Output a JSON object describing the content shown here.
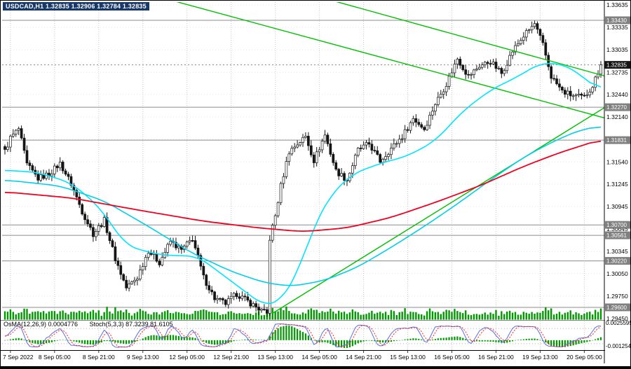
{
  "window": {
    "title": "USDCAD,H1 1.32835 1.32906 1.32784 1.32835"
  },
  "colors": {
    "background": "#FFFFFF",
    "border": "#000000",
    "grid": "#C8C8C8",
    "grid_h": "#E6E6E6",
    "candle_up": "#FFFFFF",
    "candle_down": "#151515",
    "wick": "#151515",
    "volume": "#009900",
    "level": "#8C8C8C",
    "trend": "#00C000",
    "tag_bg": "#808080",
    "tag_text": "#FFFFFF",
    "tag_current_bg": "#151515",
    "axis_text": "#000000",
    "osma": "#009900",
    "stoch_k": "#5B6EE1",
    "stoch_d": "#FF2020",
    "pane_level": "#B4B4B4",
    "separator": "#808080",
    "current_price_line": "#888888",
    "title_bg": "#17386B",
    "title_text": "#FFFFFF"
  },
  "chart_data": {
    "type": "candlestick",
    "symbol": "USDCAD",
    "timeframe": "H1",
    "ohlc_info": {
      "open": "1.32835",
      "high": "1.32906",
      "low": "1.32784",
      "close": "1.32835"
    },
    "current_price": "1.32835",
    "candles_n": 217,
    "close_anchors": [
      [
        0,
        1.3168
      ],
      [
        2,
        1.3186
      ],
      [
        5,
        1.3198
      ],
      [
        8,
        1.315
      ],
      [
        12,
        1.3132
      ],
      [
        16,
        1.3138
      ],
      [
        20,
        1.3152
      ],
      [
        24,
        1.3125
      ],
      [
        28,
        1.3088
      ],
      [
        32,
        1.3058
      ],
      [
        36,
        1.3076
      ],
      [
        40,
        1.3025
      ],
      [
        44,
        1.2986
      ],
      [
        48,
        1.3
      ],
      [
        52,
        1.3036
      ],
      [
        56,
        1.302
      ],
      [
        60,
        1.3048
      ],
      [
        64,
        1.3036
      ],
      [
        68,
        1.3052
      ],
      [
        72,
        1.3
      ],
      [
        76,
        1.2972
      ],
      [
        80,
        1.2965
      ],
      [
        84,
        1.2978
      ],
      [
        88,
        1.2968
      ],
      [
        92,
        1.2958
      ],
      [
        95,
        1.2951
      ],
      [
        96,
        1.3052
      ],
      [
        98,
        1.3082
      ],
      [
        100,
        1.3122
      ],
      [
        103,
        1.3168
      ],
      [
        106,
        1.3178
      ],
      [
        109,
        1.3188
      ],
      [
        112,
        1.3156
      ],
      [
        116,
        1.319
      ],
      [
        120,
        1.3142
      ],
      [
        124,
        1.313
      ],
      [
        128,
        1.317
      ],
      [
        132,
        1.3178
      ],
      [
        136,
        1.3155
      ],
      [
        140,
        1.3172
      ],
      [
        144,
        1.3188
      ],
      [
        148,
        1.3212
      ],
      [
        152,
        1.3198
      ],
      [
        156,
        1.3232
      ],
      [
        160,
        1.3258
      ],
      [
        164,
        1.3292
      ],
      [
        168,
        1.3268
      ],
      [
        172,
        1.3282
      ],
      [
        176,
        1.3288
      ],
      [
        180,
        1.3272
      ],
      [
        184,
        1.3302
      ],
      [
        188,
        1.3322
      ],
      [
        192,
        1.3338
      ],
      [
        195,
        1.331
      ],
      [
        198,
        1.3268
      ],
      [
        202,
        1.3248
      ],
      [
        206,
        1.3242
      ],
      [
        210,
        1.324
      ],
      [
        213,
        1.3256
      ],
      [
        216,
        1.32835
      ]
    ],
    "ma_lines": [
      {
        "name": "ma-cyan-fast",
        "color": "#00E5FF",
        "width": 1.6,
        "anchors": [
          [
            0,
            1.3143
          ],
          [
            12,
            1.314
          ],
          [
            24,
            1.3126
          ],
          [
            34,
            1.3095
          ],
          [
            44,
            1.3042
          ],
          [
            56,
            1.303
          ],
          [
            70,
            1.3028
          ],
          [
            82,
            1.2995
          ],
          [
            94,
            1.2962
          ],
          [
            100,
            1.2968
          ],
          [
            106,
            1.3005
          ],
          [
            112,
            1.3068
          ],
          [
            118,
            1.311
          ],
          [
            126,
            1.3138
          ],
          [
            136,
            1.3152
          ],
          [
            146,
            1.3162
          ],
          [
            156,
            1.3182
          ],
          [
            166,
            1.3222
          ],
          [
            176,
            1.325
          ],
          [
            186,
            1.3268
          ],
          [
            194,
            1.3286
          ],
          [
            202,
            1.3285
          ],
          [
            208,
            1.3272
          ],
          [
            216,
            1.3248
          ]
        ]
      },
      {
        "name": "ma-cyan-slow",
        "color": "#00CFEA",
        "width": 1.6,
        "anchors": [
          [
            0,
            1.313
          ],
          [
            20,
            1.3122
          ],
          [
            36,
            1.3102
          ],
          [
            52,
            1.3068
          ],
          [
            68,
            1.3032
          ],
          [
            82,
            1.3008
          ],
          [
            94,
            1.2993
          ],
          [
            104,
            1.2988
          ],
          [
            116,
            1.2996
          ],
          [
            128,
            1.3014
          ],
          [
            140,
            1.304
          ],
          [
            152,
            1.3068
          ],
          [
            164,
            1.3098
          ],
          [
            176,
            1.313
          ],
          [
            188,
            1.316
          ],
          [
            198,
            1.318
          ],
          [
            208,
            1.3196
          ],
          [
            216,
            1.3202
          ]
        ]
      },
      {
        "name": "ma-red",
        "color": "#F2001E",
        "width": 1.8,
        "anchors": [
          [
            0,
            1.3114
          ],
          [
            24,
            1.3106
          ],
          [
            48,
            1.309
          ],
          [
            72,
            1.3075
          ],
          [
            92,
            1.3066
          ],
          [
            108,
            1.3061
          ],
          [
            124,
            1.3066
          ],
          [
            140,
            1.308
          ],
          [
            156,
            1.31
          ],
          [
            172,
            1.3122
          ],
          [
            188,
            1.3148
          ],
          [
            200,
            1.3165
          ],
          [
            216,
            1.3184
          ]
        ]
      }
    ],
    "trendlines": [
      {
        "name": "descending-trendline-lower",
        "from": [
          60,
          1.337
        ],
        "to": [
          218,
          1.3212
        ]
      },
      {
        "name": "descending-trendline-upper",
        "from": [
          118,
          1.337
        ],
        "to": [
          218,
          1.3268
        ]
      },
      {
        "name": "ascending-trendline",
        "from": [
          97,
          1.2952
        ],
        "to": [
          218,
          1.3228
        ]
      }
    ],
    "levels": [
      "1.33430",
      "1.32270",
      "1.31831",
      "1.30700",
      "1.30561",
      "1.30220",
      "1.29600"
    ],
    "price_axis": {
      "max_val": 1.33635,
      "min_val": 1.2945,
      "ticks": [
        "1.33635",
        "1.33335",
        "1.33035",
        "1.32735",
        "1.32440",
        "1.32140",
        "1.31840",
        "1.31540",
        "1.31245",
        "1.30945",
        "1.30645",
        "1.30345",
        "1.30050",
        "1.29750",
        "1.29450"
      ]
    },
    "time_axis": {
      "first_index": 2,
      "step": 16,
      "labels": [
        "7 Sep 2022",
        "8 Sep 05:00",
        "8 Sep 21:00",
        "9 Sep 13:00",
        "12 Sep 05:00",
        "12 Sep 21:00",
        "13 Sep 13:00",
        "14 Sep 05:00",
        "14 Sep 21:00",
        "15 Sep 13:00",
        "16 Sep 05:00",
        "16 Sep 21:00",
        "19 Sep 13:00",
        "20 Sep 05:00"
      ]
    },
    "indicator_pane": {
      "label_osma": "OsMA(12,26,9) 0.0004776",
      "label_stoch": "Stoch(5,3,3) 87.3239 81.6105",
      "axis_max": "0.0025595",
      "axis_min": "-0.0012540",
      "axis_max_val": 0.0025595,
      "axis_min_val": -0.001254,
      "stoch_levels": [
        80,
        20
      ]
    },
    "volume": {
      "visible": true
    }
  }
}
